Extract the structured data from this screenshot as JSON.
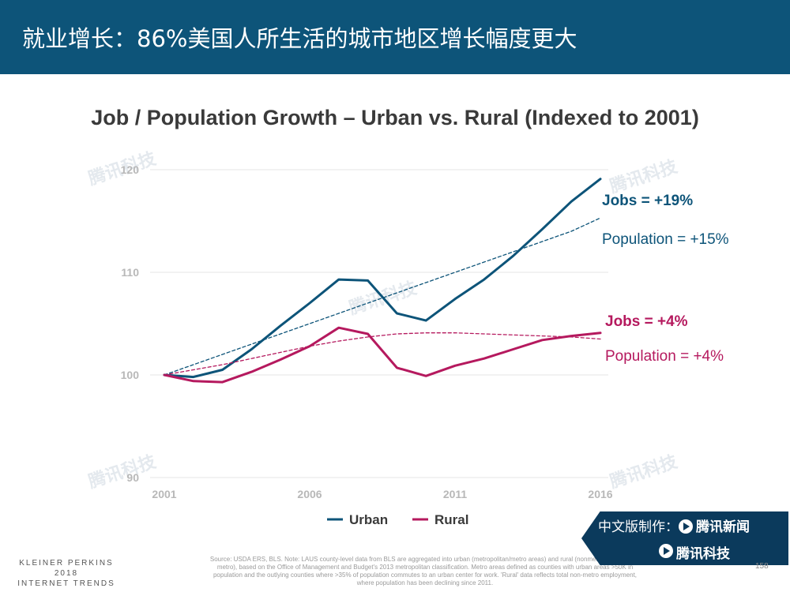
{
  "header": {
    "title": "就业增长：86%美国人所生活的城市地区增长幅度更大"
  },
  "chart_data": {
    "type": "line",
    "title": "Job / Population Growth – Urban vs. Rural (Indexed to 2001)",
    "x": [
      2001,
      2002,
      2003,
      2004,
      2005,
      2006,
      2007,
      2008,
      2009,
      2010,
      2011,
      2012,
      2013,
      2014,
      2015,
      2016
    ],
    "xticks": [
      "2001",
      "2006",
      "2011",
      "2016"
    ],
    "yticks": [
      "90",
      "100",
      "110",
      "120"
    ],
    "ylim": [
      90,
      120
    ],
    "xlim": [
      2001,
      2016
    ],
    "series": [
      {
        "name": "Urban Jobs",
        "legend": "Urban",
        "color": "#0d5479",
        "style": "solid",
        "values": [
          100,
          99.8,
          100.5,
          102.5,
          104.8,
          107,
          109.3,
          109.2,
          106,
          105.3,
          107.4,
          109.3,
          111.6,
          114.2,
          116.9,
          119.1
        ]
      },
      {
        "name": "Rural Jobs",
        "legend": "Rural",
        "color": "#b5195e",
        "style": "solid",
        "values": [
          100,
          99.4,
          99.3,
          100.3,
          101.5,
          102.8,
          104.6,
          104,
          100.7,
          99.9,
          100.9,
          101.6,
          102.5,
          103.4,
          103.8,
          104.1
        ]
      },
      {
        "name": "Urban Population",
        "color": "#0d5479",
        "style": "dashed",
        "values": [
          100,
          101,
          102,
          103,
          104,
          105,
          106,
          107,
          108,
          109,
          110,
          111,
          112,
          113,
          114,
          115.3
        ]
      },
      {
        "name": "Rural Population",
        "color": "#b5195e",
        "style": "dashed",
        "values": [
          100,
          100.5,
          101,
          101.6,
          102.2,
          102.8,
          103.3,
          103.7,
          104,
          104.1,
          104.1,
          104,
          103.9,
          103.8,
          103.7,
          103.5
        ]
      }
    ],
    "annotations": {
      "urban_jobs": "Jobs = +19%",
      "urban_pop": "Population = +15%",
      "rural_jobs": "Jobs = +4%",
      "rural_pop": "Population = +4%"
    },
    "legend_position": "bottom-center"
  },
  "footer": {
    "brand_line1": "KLEINER PERKINS",
    "brand_line2": "2018",
    "brand_line3": "INTERNET TRENDS",
    "source": "Source: USDA ERS, BLS. Note: LAUS county-level data from BLS are aggregated into urban (metropolitan/metro areas) and rural (nonmetropolitan / non-metro), based on the Office of Management and Budget's 2013 metropolitan classification. Metro areas defined as counties with urban areas >50K in population and the outlying counties where >35% of population commutes to an urban center for work. 'Rural' data reflects total non-metro employment, where population has been declining since 2011.",
    "page_number": "158"
  },
  "badge": {
    "line1": "中文版制作：",
    "line1_brand": "腾讯新闻",
    "line2": "腾讯科技"
  },
  "watermark": "腾讯科技"
}
